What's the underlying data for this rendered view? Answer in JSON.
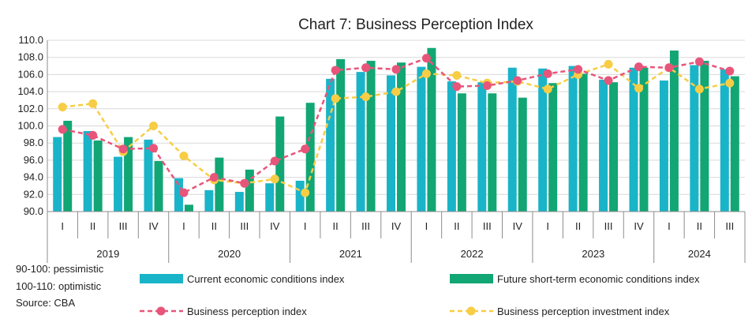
{
  "colors": {
    "current": "#1ab4c8",
    "future": "#12a674",
    "bpi": "#e8557a",
    "bpii": "#f7cd45",
    "axis": "#8c8c8c",
    "text": "#222222"
  },
  "notes": {
    "pessimistic": "90-100: pessimistic",
    "optimistic": "100-110: optimistic",
    "source": "Source: CBA"
  },
  "chart_data": {
    "type": "bar",
    "title": "Chart 7: Business Perception Index",
    "ylim": [
      90,
      110
    ],
    "yticks": [
      "90.0",
      "92.0",
      "94.0",
      "96.0",
      "98.0",
      "100.0",
      "102.0",
      "104.0",
      "106.0",
      "108.0",
      "110.0"
    ],
    "categories": [
      "I",
      "II",
      "III",
      "IV",
      "I",
      "II",
      "III",
      "IV",
      "I",
      "II",
      "III",
      "IV",
      "I",
      "II",
      "III",
      "IV",
      "I",
      "II",
      "III",
      "IV",
      "I",
      "II",
      "III"
    ],
    "years": [
      {
        "label": "2019",
        "count": 4
      },
      {
        "label": "2020",
        "count": 4
      },
      {
        "label": "2021",
        "count": 4
      },
      {
        "label": "2022",
        "count": 4
      },
      {
        "label": "2023",
        "count": 4
      },
      {
        "label": "2024",
        "count": 3
      }
    ],
    "grid": true,
    "legend_position": "bottom",
    "series": [
      {
        "name": "Current economic conditions index",
        "kind": "bar",
        "values": [
          98.7,
          99.4,
          96.4,
          98.4,
          93.9,
          92.5,
          92.3,
          93.3,
          93.6,
          105.5,
          106.3,
          105.9,
          106.9,
          105.2,
          105.1,
          106.8,
          106.7,
          107.0,
          105.4,
          106.8,
          105.3,
          107.1,
          106.6
        ]
      },
      {
        "name": "Future short-term economic conditions index",
        "kind": "bar",
        "values": [
          100.6,
          98.3,
          98.7,
          95.9,
          90.8,
          96.3,
          94.9,
          101.1,
          102.7,
          107.8,
          107.6,
          107.4,
          109.1,
          103.8,
          103.8,
          103.3,
          105.0,
          106.1,
          105.1,
          106.8,
          108.8,
          107.6,
          105.8
        ]
      },
      {
        "name": "Business perception index",
        "kind": "line",
        "values": [
          99.6,
          98.9,
          97.3,
          97.4,
          92.2,
          94.0,
          93.3,
          95.9,
          97.3,
          106.5,
          106.8,
          106.6,
          107.9,
          104.6,
          104.7,
          105.3,
          106.1,
          106.6,
          105.3,
          106.9,
          106.8,
          107.5,
          106.4
        ]
      },
      {
        "name": "Business perception investment index",
        "kind": "line",
        "values": [
          102.2,
          102.6,
          97.0,
          100.0,
          96.5,
          93.7,
          93.3,
          93.8,
          92.2,
          103.2,
          103.4,
          104.0,
          106.1,
          105.9,
          105.0,
          105.2,
          104.3,
          106.0,
          107.2,
          104.4,
          106.8,
          104.3,
          105.0
        ]
      }
    ]
  }
}
